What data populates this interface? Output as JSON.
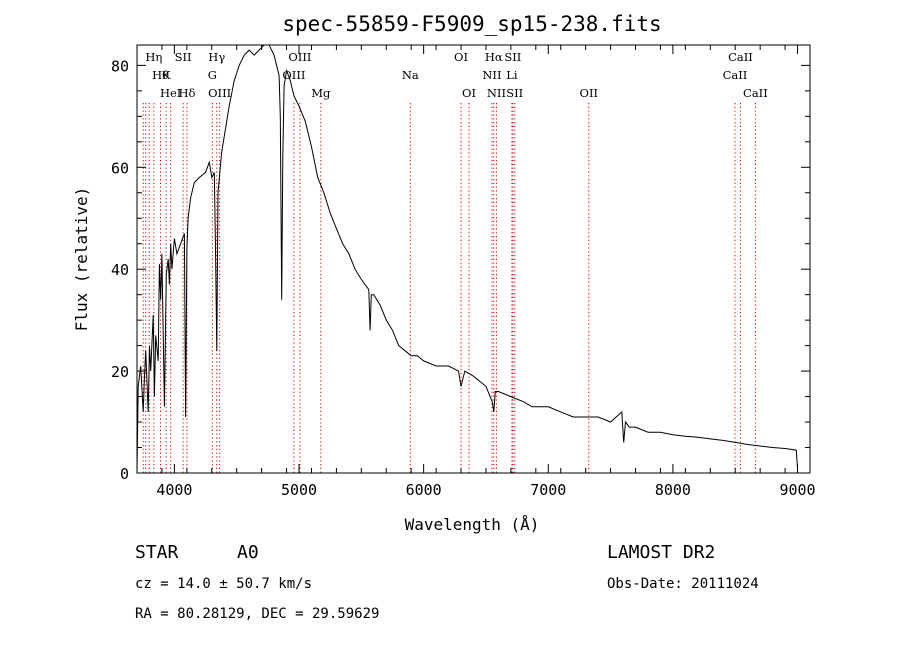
{
  "chart_data": {
    "type": "line",
    "title": "spec-55859-F5909_sp15-238.fits",
    "xlabel": "Wavelength (Å)",
    "ylabel": "Flux (relative)",
    "xlim": [
      3700,
      9100
    ],
    "ylim": [
      0,
      84
    ],
    "xticks": [
      4000,
      5000,
      6000,
      7000,
      8000,
      9000
    ],
    "yticks": [
      0,
      20,
      40,
      60,
      80
    ],
    "grid": false,
    "series": [
      {
        "x": [
          3700,
          3710,
          3730,
          3750,
          3760,
          3770,
          3790,
          3800,
          3810,
          3830,
          3840,
          3850,
          3870,
          3880,
          3890,
          3900,
          3920,
          3935,
          3950,
          3960,
          3970,
          3980,
          4000,
          4020,
          4050,
          4080,
          4090,
          4100,
          4110,
          4130,
          4160,
          4200,
          4250,
          4280,
          4300,
          4320,
          4330,
          4340,
          4350,
          4380,
          4400,
          4440,
          4480,
          4520,
          4560,
          4600,
          4640,
          4680,
          4720,
          4760,
          4800,
          4840,
          4850,
          4861,
          4870,
          4880,
          4900,
          4930,
          4960,
          5000,
          5050,
          5100,
          5150,
          5200,
          5250,
          5300,
          5350,
          5400,
          5450,
          5500,
          5560,
          5570,
          5580,
          5600,
          5650,
          5700,
          5750,
          5800,
          5850,
          5900,
          5950,
          6000,
          6100,
          6200,
          6280,
          6300,
          6330,
          6400,
          6500,
          6550,
          6563,
          6575,
          6600,
          6700,
          6800,
          6870,
          6900,
          7000,
          7100,
          7200,
          7300,
          7400,
          7500,
          7590,
          7605,
          7620,
          7650,
          7700,
          7800,
          7900,
          8000,
          8100,
          8200,
          8300,
          8400,
          8500,
          8600,
          8700,
          8800,
          8900,
          8990,
          9000
        ],
        "y": [
          0,
          17,
          21,
          12,
          19,
          24,
          12,
          25,
          20,
          31,
          15,
          27,
          22,
          41,
          34,
          43,
          13,
          39,
          42,
          37,
          45,
          40,
          46,
          43,
          45,
          47,
          11,
          44,
          50,
          54,
          57,
          58,
          59,
          61,
          58,
          59,
          44,
          24,
          55,
          63,
          66,
          72,
          77,
          80,
          82,
          83,
          82,
          83,
          84,
          85,
          82,
          78,
          70,
          34,
          62,
          76,
          79,
          77,
          74,
          72,
          69,
          64,
          58,
          55,
          51,
          48,
          45,
          43,
          40,
          38,
          36,
          28,
          35,
          35,
          33,
          30,
          28,
          25,
          24,
          23,
          23,
          22,
          21,
          21,
          20,
          17,
          20,
          19,
          17,
          14,
          12,
          16,
          16,
          15,
          14,
          13,
          13,
          13,
          12,
          11,
          11,
          11,
          10,
          12,
          6,
          10,
          9,
          9,
          8,
          8,
          7.5,
          7.2,
          7,
          6.7,
          6.4,
          6,
          5.6,
          5.3,
          5,
          4.8,
          4.5,
          1
        ]
      }
    ],
    "line_labels": [
      {
        "wl": 3835,
        "text": "Hη",
        "row": 1
      },
      {
        "wl": 3889,
        "text": "Hθ",
        "row": 2
      },
      {
        "wl": 3934,
        "text": "K",
        "row": 2
      },
      {
        "wl": 3970,
        "text": "HeI",
        "row": 3
      },
      {
        "wl": 4070,
        "text": "SII",
        "row": 1
      },
      {
        "wl": 4101,
        "text": "Hδ",
        "row": 3
      },
      {
        "wl": 4305,
        "text": "G",
        "row": 2
      },
      {
        "wl": 4340,
        "text": "Hγ",
        "row": 1
      },
      {
        "wl": 4363,
        "text": "OIII",
        "row": 3
      },
      {
        "wl": 4959,
        "text": "OIII",
        "row": 2
      },
      {
        "wl": 5007,
        "text": "OIII",
        "row": 1
      },
      {
        "wl": 5175,
        "text": "Mg",
        "row": 3
      },
      {
        "wl": 5893,
        "text": "Na",
        "row": 2
      },
      {
        "wl": 6300,
        "text": "OI",
        "row": 1
      },
      {
        "wl": 6364,
        "text": "OI",
        "row": 3
      },
      {
        "wl": 6548,
        "text": "NII",
        "row": 2
      },
      {
        "wl": 6563,
        "text": "Hα",
        "row": 1
      },
      {
        "wl": 6584,
        "text": "NII",
        "row": 3
      },
      {
        "wl": 6716,
        "text": "SII",
        "row": 1
      },
      {
        "wl": 6708,
        "text": "Li",
        "row": 2
      },
      {
        "wl": 6731,
        "text": "SII",
        "row": 3
      },
      {
        "wl": 7325,
        "text": "OII",
        "row": 3
      },
      {
        "wl": 8498,
        "text": "CaII",
        "row": 2
      },
      {
        "wl": 8542,
        "text": "CaII",
        "row": 1
      },
      {
        "wl": 8662,
        "text": "CaII",
        "row": 3
      }
    ],
    "marker_lines": [
      3750,
      3770,
      3798,
      3835,
      3889,
      3934,
      3970,
      4070,
      4101,
      4305,
      4340,
      4363,
      4959,
      5007,
      5175,
      5893,
      6300,
      6364,
      6548,
      6563,
      6584,
      6708,
      6716,
      6731,
      7325,
      8498,
      8542,
      8662
    ],
    "marker_color": "#d00000"
  },
  "info": {
    "class": "STAR",
    "subclass": "A0",
    "survey": "LAMOST DR2",
    "cz": "cz = 14.0 ± 50.7 km/s",
    "obsdate": "Obs-Date: 20111024",
    "coords": "RA =  80.28129, DEC =  29.59629"
  }
}
